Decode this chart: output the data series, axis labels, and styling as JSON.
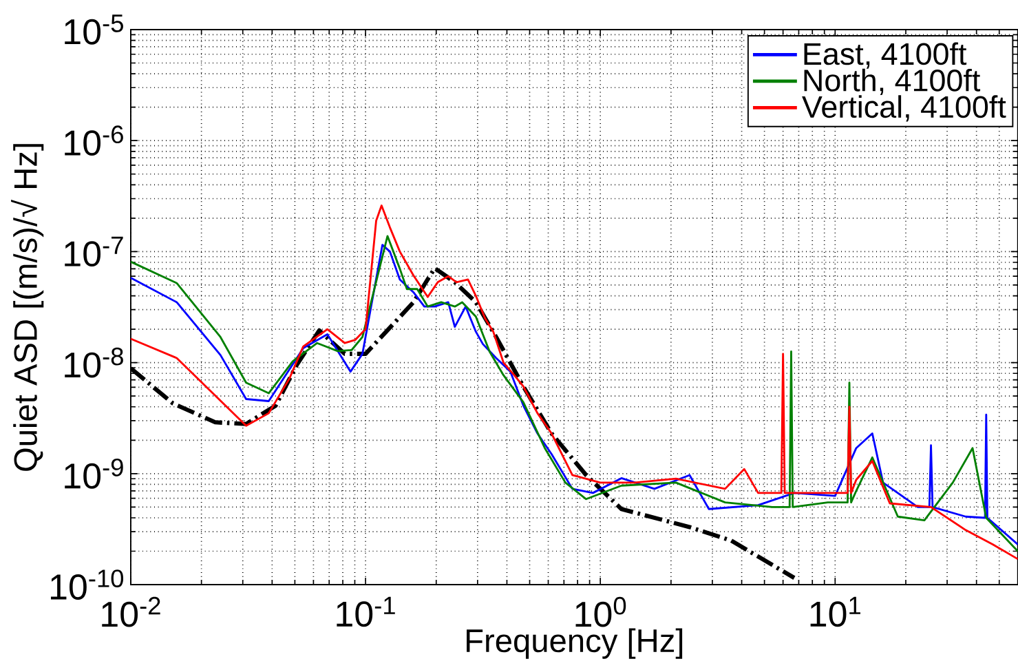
{
  "chart_data": {
    "type": "line",
    "xlabel": "Frequency [Hz]",
    "ylabel": "Quiet ASD [(m/s)/√ Hz]",
    "log": "xy",
    "grid": true,
    "legend": "top right",
    "xlim": [
      0.01,
      60
    ],
    "ylim": [
      1e-10,
      1e-05
    ],
    "xticks": [
      {
        "value": 0.01,
        "label": "10$^{-2}$"
      },
      {
        "value": 0.1,
        "label": "10$^{-1}$"
      },
      {
        "value": 1,
        "label": "10$^{0}$"
      },
      {
        "value": 10,
        "label": "10$^{1}$"
      }
    ],
    "yticks": [
      {
        "value": 1e-10,
        "label": "10$^{-10}$"
      },
      {
        "value": 1e-09,
        "label": "10$^{-9}$"
      },
      {
        "value": 1e-08,
        "label": "10$^{-8}$"
      },
      {
        "value": 1e-07,
        "label": "10$^{-7}$"
      },
      {
        "value": 1e-06,
        "label": "10$^{-6}$"
      },
      {
        "value": 1e-05,
        "label": "10$^{-5}$"
      }
    ],
    "series": [
      {
        "name": "East, 4100ft",
        "color": "#0000ff",
        "x": [
          0.01,
          0.0157,
          0.0241,
          0.031,
          0.0387,
          0.0543,
          0.0688,
          0.0863,
          0.097,
          0.118,
          0.127,
          0.14,
          0.16,
          0.178,
          0.197,
          0.225,
          0.24,
          0.267,
          0.295,
          0.316,
          0.36,
          0.414,
          0.47,
          0.54,
          0.62,
          0.76,
          0.93,
          1.23,
          1.7,
          2.4,
          2.9,
          4.7,
          6.7,
          10,
          12.3,
          14.4,
          16,
          22.5,
          25.2,
          25.6,
          26,
          36,
          43.5,
          44,
          44.5,
          60
        ],
        "values": [
          5.8e-08,
          3.5e-08,
          1.17e-08,
          4.7e-09,
          4.5e-09,
          1.35e-08,
          1.8e-08,
          8.3e-09,
          1.2e-08,
          1.15e-07,
          1e-07,
          5.6e-08,
          4.3e-08,
          3.2e-08,
          3.2e-08,
          3.5e-08,
          2.1e-08,
          3.2e-08,
          1.9e-08,
          1.47e-08,
          1.1e-08,
          8.3e-09,
          4.1e-09,
          2.3e-09,
          1.5e-09,
          7.3e-10,
          6.7e-10,
          9.1e-10,
          7.3e-10,
          9.7e-10,
          4.8e-10,
          5.2e-10,
          6.7e-10,
          6.3e-10,
          1.7e-09,
          2.3e-09,
          8.3e-10,
          5e-10,
          5e-10,
          1.8e-09,
          5e-10,
          4.1e-10,
          4e-10,
          3.4e-09,
          4e-10,
          2.3e-10
        ]
      },
      {
        "name": "North, 4100ft",
        "color": "#008000",
        "x": [
          0.01,
          0.0157,
          0.0241,
          0.031,
          0.0387,
          0.049,
          0.0622,
          0.0761,
          0.0873,
          0.097,
          0.124,
          0.14,
          0.15,
          0.166,
          0.184,
          0.21,
          0.24,
          0.258,
          0.295,
          0.338,
          0.387,
          0.47,
          0.58,
          0.71,
          0.87,
          1.23,
          2.1,
          3.4,
          5.4,
          6.4,
          6.5,
          6.6,
          9.3,
          11.3,
          11.5,
          11.7,
          12.3,
          14.4,
          18.5,
          24,
          31.7,
          38.5,
          44,
          60
        ],
        "values": [
          8.1e-08,
          5.2e-08,
          1.7e-08,
          6.6e-09,
          5.3e-09,
          1.03e-08,
          1.5e-08,
          1.27e-08,
          1.3e-08,
          1.7e-08,
          1.38e-07,
          7e-08,
          4.6e-08,
          4.6e-08,
          3.2e-08,
          3.5e-08,
          3.2e-08,
          3.5e-08,
          2.6e-08,
          1.25e-08,
          7.7e-09,
          4.4e-09,
          1.7e-09,
          8.3e-10,
          5.9e-10,
          7.8e-10,
          8.3e-10,
          5.5e-10,
          5e-10,
          5e-10,
          1.26e-08,
          5e-10,
          5.5e-10,
          5.5e-10,
          6.6e-09,
          5.5e-10,
          7e-10,
          1.4e-09,
          4.1e-10,
          3.8e-10,
          8.3e-10,
          1.7e-09,
          4e-10,
          2e-10
        ]
      },
      {
        "name": "Vertical, 4100ft",
        "color": "#ff0000",
        "x": [
          0.01,
          0.0157,
          0.031,
          0.0387,
          0.0474,
          0.0543,
          0.0688,
          0.0815,
          0.0903,
          0.1,
          0.111,
          0.117,
          0.127,
          0.14,
          0.16,
          0.184,
          0.203,
          0.225,
          0.244,
          0.273,
          0.295,
          0.323,
          0.35,
          0.387,
          0.43,
          0.47,
          0.54,
          0.62,
          0.76,
          1.0,
          1.4,
          2.1,
          3.4,
          4.1,
          4.7,
          5.9,
          6.0,
          6.1,
          9.3,
          11.3,
          11.5,
          11.7,
          12.3,
          14.4,
          17.1,
          25.6,
          36,
          47,
          60
        ],
        "values": [
          1.64e-08,
          1.1e-08,
          2.7e-09,
          3.5e-09,
          7.2e-09,
          1.4e-08,
          2e-08,
          1.5e-08,
          1.6e-08,
          2e-08,
          1.9e-07,
          2.6e-07,
          1.65e-07,
          1e-07,
          6.1e-08,
          3.9e-08,
          5.3e-08,
          6e-08,
          5.3e-08,
          5.6e-08,
          4e-08,
          2.5e-08,
          1.9e-08,
          1e-08,
          7.7e-09,
          6.1e-09,
          3.5e-09,
          2.3e-09,
          9.7e-10,
          8.3e-10,
          8.3e-10,
          9e-10,
          7.3e-10,
          1.1e-09,
          6.7e-10,
          6.7e-10,
          1.2e-08,
          6.7e-10,
          6.7e-10,
          6.7e-10,
          4e-09,
          6.7e-10,
          8.8e-10,
          1.3e-09,
          5.4e-10,
          5e-10,
          3.1e-10,
          2.3e-10,
          1.7e-10
        ]
      },
      {
        "color": "#000000",
        "line_style": "dashed",
        "x": [
          0.01,
          0.0151,
          0.0229,
          0.031,
          0.0414,
          0.0509,
          0.0635,
          0.0815,
          0.1,
          0.16,
          0.197,
          0.24,
          0.295,
          0.36,
          0.47,
          0.62,
          0.87,
          1.23,
          2.4,
          3.6,
          6.7
        ],
        "values": [
          8.9e-09,
          4.3e-09,
          2.9e-09,
          2.8e-09,
          4.1e-09,
          9.5e-09,
          1.95e-08,
          1.2e-08,
          1.2e-08,
          3.5e-08,
          7.1e-08,
          5.3e-08,
          3.5e-08,
          1.7e-08,
          6.1e-09,
          2.3e-09,
          9.7e-10,
          4.8e-10,
          3.3e-10,
          2.5e-10,
          1.15e-10
        ]
      }
    ]
  }
}
